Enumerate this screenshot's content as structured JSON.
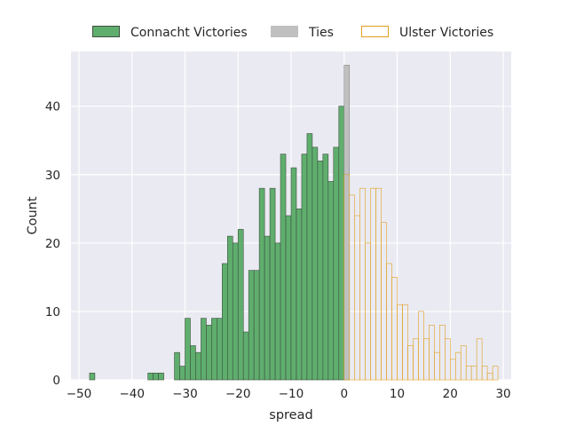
{
  "chart_data": {
    "type": "bar",
    "title": "",
    "xlabel": "spread",
    "ylabel": "Count",
    "xlim": [
      -51.5,
      31.5
    ],
    "ylim": [
      0,
      48
    ],
    "xticks": [
      -50,
      -40,
      -30,
      -20,
      -10,
      0,
      10,
      20,
      30
    ],
    "yticks": [
      0,
      10,
      20,
      30,
      40
    ],
    "grid": true,
    "legend_position": "top",
    "bin_width": 1,
    "series": [
      {
        "name": "Connacht Victories",
        "color": "#5fae6e",
        "edgecolor": "#3f4f3f",
        "filled": true,
        "x": [
          -48,
          -37,
          -36,
          -35,
          -32,
          -31,
          -30,
          -29,
          -28,
          -27,
          -26,
          -25,
          -24,
          -23,
          -22,
          -21,
          -20,
          -19,
          -18,
          -17,
          -16,
          -15,
          -14,
          -13,
          -12,
          -11,
          -10,
          -9,
          -8,
          -7,
          -6,
          -5,
          -4,
          -3,
          -2,
          -1
        ],
        "values": [
          1,
          1,
          1,
          1,
          4,
          2,
          9,
          5,
          4,
          9,
          8,
          9,
          9,
          17,
          21,
          20,
          22,
          7,
          16,
          16,
          28,
          21,
          28,
          20,
          33,
          24,
          31,
          25,
          33,
          36,
          34,
          32,
          33,
          29,
          34,
          40
        ]
      },
      {
        "name": "Ties",
        "color": "#c0c0c0",
        "edgecolor": "#8c8c8c",
        "filled": true,
        "x": [
          0
        ],
        "values": [
          46
        ]
      },
      {
        "name": "Ulster Victories",
        "color": "#ffffff",
        "edgecolor": "#e0a020",
        "filled": false,
        "x": [
          0,
          1,
          2,
          3,
          4,
          5,
          6,
          7,
          8,
          9,
          10,
          11,
          12,
          13,
          14,
          15,
          16,
          17,
          18,
          19,
          20,
          21,
          22,
          23,
          24,
          25,
          26,
          27,
          28
        ],
        "values": [
          30,
          27,
          24,
          28,
          20,
          28,
          28,
          23,
          17,
          15,
          11,
          11,
          5,
          6,
          10,
          6,
          8,
          4,
          8,
          6,
          3,
          4,
          5,
          2,
          2,
          6,
          2,
          1,
          2
        ]
      }
    ]
  }
}
